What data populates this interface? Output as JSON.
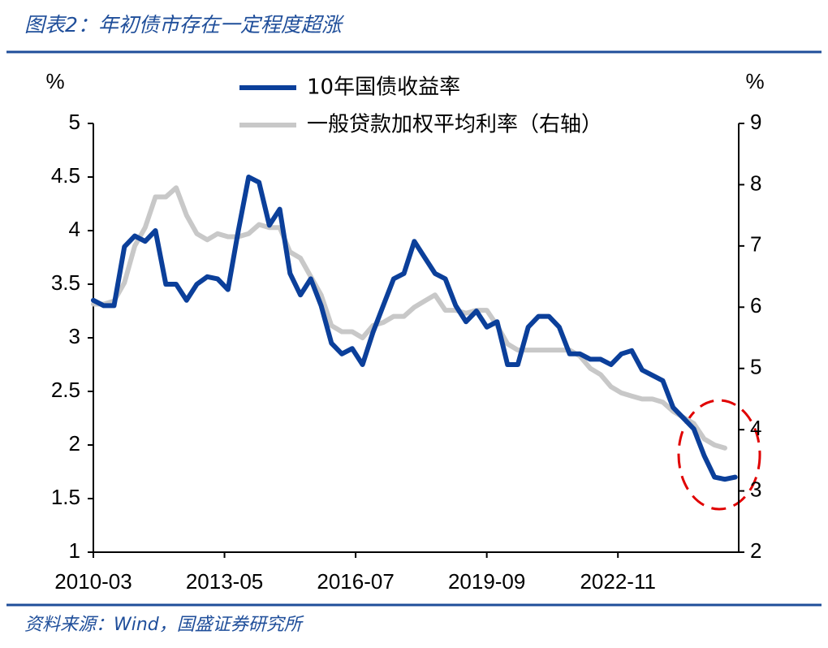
{
  "chart_data": {
    "type": "line",
    "title": "图表2：年初债市存在一定程度超涨",
    "source": "资料来源：Wind，国盛证券研究所",
    "y_label": "%",
    "y2_label": "%",
    "x": [
      "2010-03",
      "2010-06",
      "2010-09",
      "2010-12",
      "2011-03",
      "2011-06",
      "2011-09",
      "2011-12",
      "2012-03",
      "2012-06",
      "2012-09",
      "2012-12",
      "2013-03",
      "2013-06",
      "2013-09",
      "2013-12",
      "2014-03",
      "2014-06",
      "2014-09",
      "2014-12",
      "2015-03",
      "2015-06",
      "2015-09",
      "2015-12",
      "2016-03",
      "2016-06",
      "2016-09",
      "2016-12",
      "2017-03",
      "2017-06",
      "2017-09",
      "2017-12",
      "2018-03",
      "2018-06",
      "2018-09",
      "2018-12",
      "2019-03",
      "2019-06",
      "2019-09",
      "2019-12",
      "2020-03",
      "2020-06",
      "2020-09",
      "2020-12",
      "2021-03",
      "2021-06",
      "2021-09",
      "2021-12",
      "2022-03",
      "2022-06",
      "2022-09",
      "2022-12",
      "2023-03",
      "2023-06",
      "2023-09",
      "2023-12",
      "2024-03",
      "2024-06",
      "2024-09",
      "2024-12",
      "2025-03",
      "2025-06",
      "2025-09"
    ],
    "xlim": [
      "2010-03",
      "2025-10"
    ],
    "xticks": [
      "2010-03",
      "2013-05",
      "2016-07",
      "2019-09",
      "2022-11"
    ],
    "ylim": [
      1,
      5
    ],
    "yticks": [
      1,
      1.5,
      2,
      2.5,
      3,
      3.5,
      4,
      4.5,
      5
    ],
    "y2lim": [
      2,
      9
    ],
    "y2ticks": [
      2,
      3,
      4,
      5,
      6,
      7,
      8,
      9
    ],
    "series": [
      {
        "name": "10年国债收益率",
        "color": "#0b3f9a",
        "values": [
          3.35,
          3.3,
          3.3,
          3.85,
          3.95,
          3.9,
          4.0,
          3.5,
          3.5,
          3.35,
          3.5,
          3.57,
          3.55,
          3.45,
          4.0,
          4.5,
          4.45,
          4.05,
          4.2,
          3.6,
          3.4,
          3.55,
          3.3,
          2.95,
          2.85,
          2.9,
          2.75,
          3.05,
          3.3,
          3.55,
          3.6,
          3.9,
          3.75,
          3.6,
          3.55,
          3.3,
          3.15,
          3.25,
          3.1,
          3.15,
          2.75,
          2.75,
          3.1,
          3.2,
          3.2,
          3.1,
          2.85,
          2.85,
          2.8,
          2.8,
          2.75,
          2.85,
          2.88,
          2.7,
          2.65,
          2.6,
          2.35,
          2.25,
          2.15,
          1.9,
          1.7,
          1.68,
          1.7
        ]
      },
      {
        "name": "一般贷款加权平均利率（右轴）",
        "color": "#c8c8c8",
        "axis": "y2",
        "values": [
          6.05,
          6.05,
          6.1,
          6.4,
          7.0,
          7.3,
          7.8,
          7.8,
          7.95,
          7.5,
          7.2,
          7.1,
          7.2,
          7.15,
          7.15,
          7.2,
          7.35,
          7.3,
          7.3,
          6.9,
          6.8,
          6.5,
          6.2,
          5.7,
          5.6,
          5.6,
          5.5,
          5.7,
          5.75,
          5.85,
          5.85,
          6.0,
          6.1,
          6.2,
          5.95,
          5.95,
          5.9,
          5.95,
          5.95,
          5.7,
          5.4,
          5.3,
          5.3,
          5.3,
          5.3,
          5.3,
          5.3,
          5.2,
          5.0,
          4.9,
          4.7,
          4.6,
          4.55,
          4.5,
          4.5,
          4.45,
          4.3,
          4.2,
          4.1,
          3.85,
          3.75,
          3.7,
          null
        ]
      }
    ]
  }
}
